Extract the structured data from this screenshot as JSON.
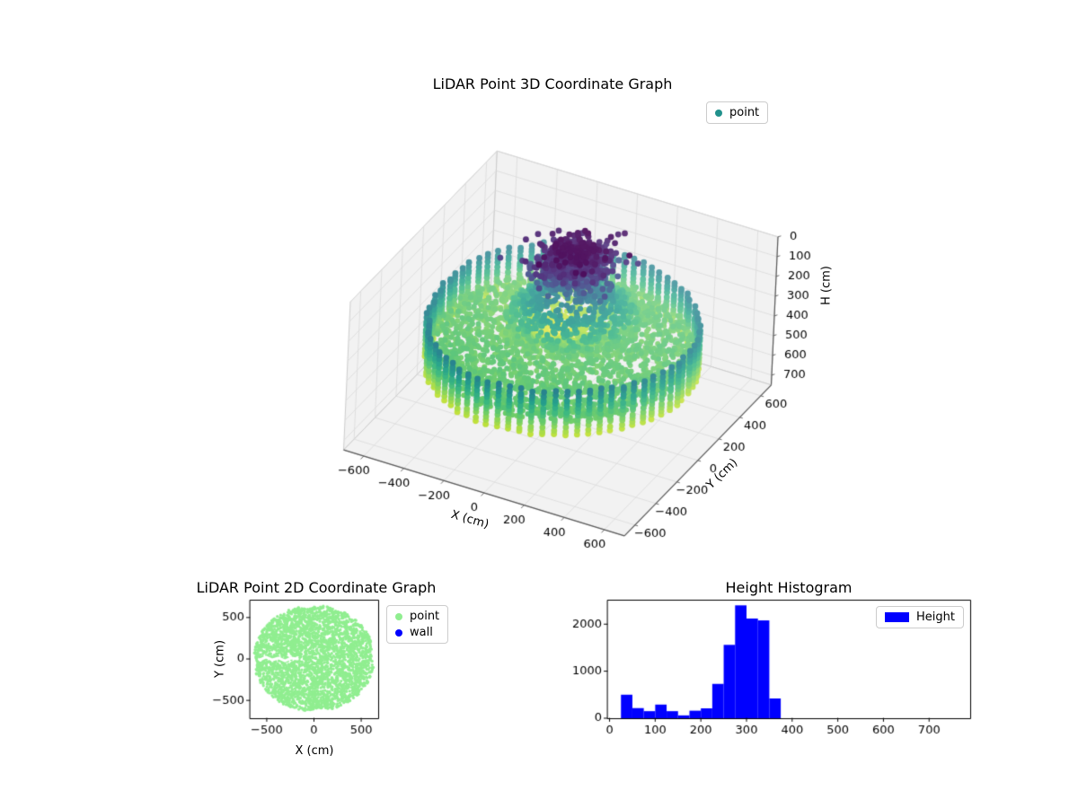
{
  "figure": {
    "background": "#ffffff"
  },
  "chart_data": [
    {
      "id": "lidar-3d",
      "type": "scatter",
      "projection": "3d",
      "title": "LiDAR Point 3D Coordinate Graph",
      "xlabel": "X (cm)",
      "ylabel": "Y (cm)",
      "zlabel": "H (cm)",
      "xlim": [
        -700,
        700
      ],
      "ylim": [
        -700,
        700
      ],
      "zlim": [
        0,
        750
      ],
      "z_axis_inverted": true,
      "xticks": [
        -600,
        -400,
        -200,
        0,
        200,
        400,
        600
      ],
      "yticks": [
        -600,
        -400,
        -200,
        0,
        200,
        400,
        600
      ],
      "zticks": [
        0,
        100,
        200,
        300,
        400,
        500,
        600,
        700
      ],
      "grid": true,
      "colormap": "viridis",
      "colormap_domain_cm": [
        40,
        520
      ],
      "legend": {
        "location": "upper right",
        "entries": [
          {
            "label": "point",
            "marker": "dot",
            "color": "#21918c"
          }
        ]
      },
      "point_cloud": {
        "wall": {
          "radius_cm": 600,
          "columns": 72,
          "beads_per_column": 12,
          "height_range_cm": [
            255,
            470
          ]
        },
        "floor": {
          "radius_cm": 585,
          "base_depth_cm": 395,
          "deep_spot": {
            "x_cm": -150,
            "y_cm": 250,
            "extra_depth_cm": 115,
            "sigma_cm": 190
          },
          "points": 2600
        },
        "mound": {
          "center_cm": [
            -60,
            230
          ],
          "radius_cm": 300,
          "top_depth_cm": 160,
          "slope": 0.78,
          "points": 900
        },
        "ceiling_cluster": {
          "center_cm": [
            -60,
            230,
            115
          ],
          "sigma_cm": [
            80,
            90,
            45
          ],
          "points": 650,
          "core": {
            "center_cm": [
              -70,
              240,
              85
            ],
            "sigma_cm": [
              45,
              50,
              28
            ],
            "points": 250
          }
        }
      }
    },
    {
      "id": "lidar-2d",
      "type": "scatter",
      "title": "LiDAR Point 2D Coordinate Graph",
      "xlabel": "X (cm)",
      "ylabel": "Y (cm)",
      "xlim": [
        -680,
        680
      ],
      "ylim": [
        -715,
        715
      ],
      "xticks": [
        -500,
        0,
        500
      ],
      "yticks": [
        -500,
        0,
        500
      ],
      "legend": {
        "location": "outside upper right",
        "entries": [
          {
            "label": "point",
            "marker": "dot",
            "color": "#90ee90"
          },
          {
            "label": "wall",
            "marker": "dot",
            "color": "#0000ff"
          }
        ]
      },
      "series": [
        {
          "name": "point",
          "color": "#90ee90",
          "shape": "filled-disc",
          "center_cm": [
            0,
            8
          ],
          "radius_cm": 640,
          "points": 3200,
          "void_path_cm": [
            [
              -575,
              -11
            ],
            [
              -508,
              22
            ],
            [
              -441,
              -11
            ],
            [
              -374,
              11
            ],
            [
              -307,
              -22
            ],
            [
              -240,
              11
            ],
            [
              -174,
              0
            ]
          ],
          "void_width_cm": 32
        }
      ]
    },
    {
      "id": "height-histogram",
      "type": "bar",
      "title": "Height Histogram",
      "xlim": [
        -5,
        790
      ],
      "ylim": [
        0,
        2520
      ],
      "xticks": [
        0,
        100,
        200,
        300,
        400,
        500,
        600,
        700
      ],
      "yticks": [
        0,
        1000,
        2000
      ],
      "bar_color": "#0000ff",
      "legend": {
        "location": "upper right",
        "entries": [
          {
            "label": "Height",
            "marker": "rect",
            "color": "#0000ff"
          }
        ]
      },
      "bin_start_cm": 25,
      "bin_width_cm": 25,
      "counts": [
        500,
        215,
        150,
        290,
        150,
        60,
        160,
        210,
        730,
        1560,
        2400,
        2120,
        2080,
        420
      ]
    }
  ]
}
